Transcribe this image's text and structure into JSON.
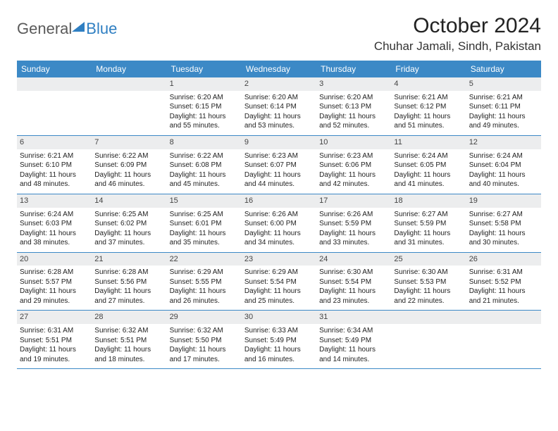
{
  "logo": {
    "textGeneral": "General",
    "textBlue": "Blue"
  },
  "title": "October 2024",
  "location": "Chuhar Jamali, Sindh, Pakistan",
  "colors": {
    "headerBg": "#3c89c6",
    "headerText": "#ffffff",
    "dateBandBg": "#ecedee",
    "borderColor": "#3c89c6",
    "logoBlue": "#2f7fc2",
    "logoGray": "#5a5a5a"
  },
  "dayNames": [
    "Sunday",
    "Monday",
    "Tuesday",
    "Wednesday",
    "Thursday",
    "Friday",
    "Saturday"
  ],
  "weeks": [
    [
      null,
      null,
      {
        "date": "1",
        "sunrise": "Sunrise: 6:20 AM",
        "sunset": "Sunset: 6:15 PM",
        "daylight": "Daylight: 11 hours and 55 minutes."
      },
      {
        "date": "2",
        "sunrise": "Sunrise: 6:20 AM",
        "sunset": "Sunset: 6:14 PM",
        "daylight": "Daylight: 11 hours and 53 minutes."
      },
      {
        "date": "3",
        "sunrise": "Sunrise: 6:20 AM",
        "sunset": "Sunset: 6:13 PM",
        "daylight": "Daylight: 11 hours and 52 minutes."
      },
      {
        "date": "4",
        "sunrise": "Sunrise: 6:21 AM",
        "sunset": "Sunset: 6:12 PM",
        "daylight": "Daylight: 11 hours and 51 minutes."
      },
      {
        "date": "5",
        "sunrise": "Sunrise: 6:21 AM",
        "sunset": "Sunset: 6:11 PM",
        "daylight": "Daylight: 11 hours and 49 minutes."
      }
    ],
    [
      {
        "date": "6",
        "sunrise": "Sunrise: 6:21 AM",
        "sunset": "Sunset: 6:10 PM",
        "daylight": "Daylight: 11 hours and 48 minutes."
      },
      {
        "date": "7",
        "sunrise": "Sunrise: 6:22 AM",
        "sunset": "Sunset: 6:09 PM",
        "daylight": "Daylight: 11 hours and 46 minutes."
      },
      {
        "date": "8",
        "sunrise": "Sunrise: 6:22 AM",
        "sunset": "Sunset: 6:08 PM",
        "daylight": "Daylight: 11 hours and 45 minutes."
      },
      {
        "date": "9",
        "sunrise": "Sunrise: 6:23 AM",
        "sunset": "Sunset: 6:07 PM",
        "daylight": "Daylight: 11 hours and 44 minutes."
      },
      {
        "date": "10",
        "sunrise": "Sunrise: 6:23 AM",
        "sunset": "Sunset: 6:06 PM",
        "daylight": "Daylight: 11 hours and 42 minutes."
      },
      {
        "date": "11",
        "sunrise": "Sunrise: 6:24 AM",
        "sunset": "Sunset: 6:05 PM",
        "daylight": "Daylight: 11 hours and 41 minutes."
      },
      {
        "date": "12",
        "sunrise": "Sunrise: 6:24 AM",
        "sunset": "Sunset: 6:04 PM",
        "daylight": "Daylight: 11 hours and 40 minutes."
      }
    ],
    [
      {
        "date": "13",
        "sunrise": "Sunrise: 6:24 AM",
        "sunset": "Sunset: 6:03 PM",
        "daylight": "Daylight: 11 hours and 38 minutes."
      },
      {
        "date": "14",
        "sunrise": "Sunrise: 6:25 AM",
        "sunset": "Sunset: 6:02 PM",
        "daylight": "Daylight: 11 hours and 37 minutes."
      },
      {
        "date": "15",
        "sunrise": "Sunrise: 6:25 AM",
        "sunset": "Sunset: 6:01 PM",
        "daylight": "Daylight: 11 hours and 35 minutes."
      },
      {
        "date": "16",
        "sunrise": "Sunrise: 6:26 AM",
        "sunset": "Sunset: 6:00 PM",
        "daylight": "Daylight: 11 hours and 34 minutes."
      },
      {
        "date": "17",
        "sunrise": "Sunrise: 6:26 AM",
        "sunset": "Sunset: 5:59 PM",
        "daylight": "Daylight: 11 hours and 33 minutes."
      },
      {
        "date": "18",
        "sunrise": "Sunrise: 6:27 AM",
        "sunset": "Sunset: 5:59 PM",
        "daylight": "Daylight: 11 hours and 31 minutes."
      },
      {
        "date": "19",
        "sunrise": "Sunrise: 6:27 AM",
        "sunset": "Sunset: 5:58 PM",
        "daylight": "Daylight: 11 hours and 30 minutes."
      }
    ],
    [
      {
        "date": "20",
        "sunrise": "Sunrise: 6:28 AM",
        "sunset": "Sunset: 5:57 PM",
        "daylight": "Daylight: 11 hours and 29 minutes."
      },
      {
        "date": "21",
        "sunrise": "Sunrise: 6:28 AM",
        "sunset": "Sunset: 5:56 PM",
        "daylight": "Daylight: 11 hours and 27 minutes."
      },
      {
        "date": "22",
        "sunrise": "Sunrise: 6:29 AM",
        "sunset": "Sunset: 5:55 PM",
        "daylight": "Daylight: 11 hours and 26 minutes."
      },
      {
        "date": "23",
        "sunrise": "Sunrise: 6:29 AM",
        "sunset": "Sunset: 5:54 PM",
        "daylight": "Daylight: 11 hours and 25 minutes."
      },
      {
        "date": "24",
        "sunrise": "Sunrise: 6:30 AM",
        "sunset": "Sunset: 5:54 PM",
        "daylight": "Daylight: 11 hours and 23 minutes."
      },
      {
        "date": "25",
        "sunrise": "Sunrise: 6:30 AM",
        "sunset": "Sunset: 5:53 PM",
        "daylight": "Daylight: 11 hours and 22 minutes."
      },
      {
        "date": "26",
        "sunrise": "Sunrise: 6:31 AM",
        "sunset": "Sunset: 5:52 PM",
        "daylight": "Daylight: 11 hours and 21 minutes."
      }
    ],
    [
      {
        "date": "27",
        "sunrise": "Sunrise: 6:31 AM",
        "sunset": "Sunset: 5:51 PM",
        "daylight": "Daylight: 11 hours and 19 minutes."
      },
      {
        "date": "28",
        "sunrise": "Sunrise: 6:32 AM",
        "sunset": "Sunset: 5:51 PM",
        "daylight": "Daylight: 11 hours and 18 minutes."
      },
      {
        "date": "29",
        "sunrise": "Sunrise: 6:32 AM",
        "sunset": "Sunset: 5:50 PM",
        "daylight": "Daylight: 11 hours and 17 minutes."
      },
      {
        "date": "30",
        "sunrise": "Sunrise: 6:33 AM",
        "sunset": "Sunset: 5:49 PM",
        "daylight": "Daylight: 11 hours and 16 minutes."
      },
      {
        "date": "31",
        "sunrise": "Sunrise: 6:34 AM",
        "sunset": "Sunset: 5:49 PM",
        "daylight": "Daylight: 11 hours and 14 minutes."
      },
      null,
      null
    ]
  ]
}
